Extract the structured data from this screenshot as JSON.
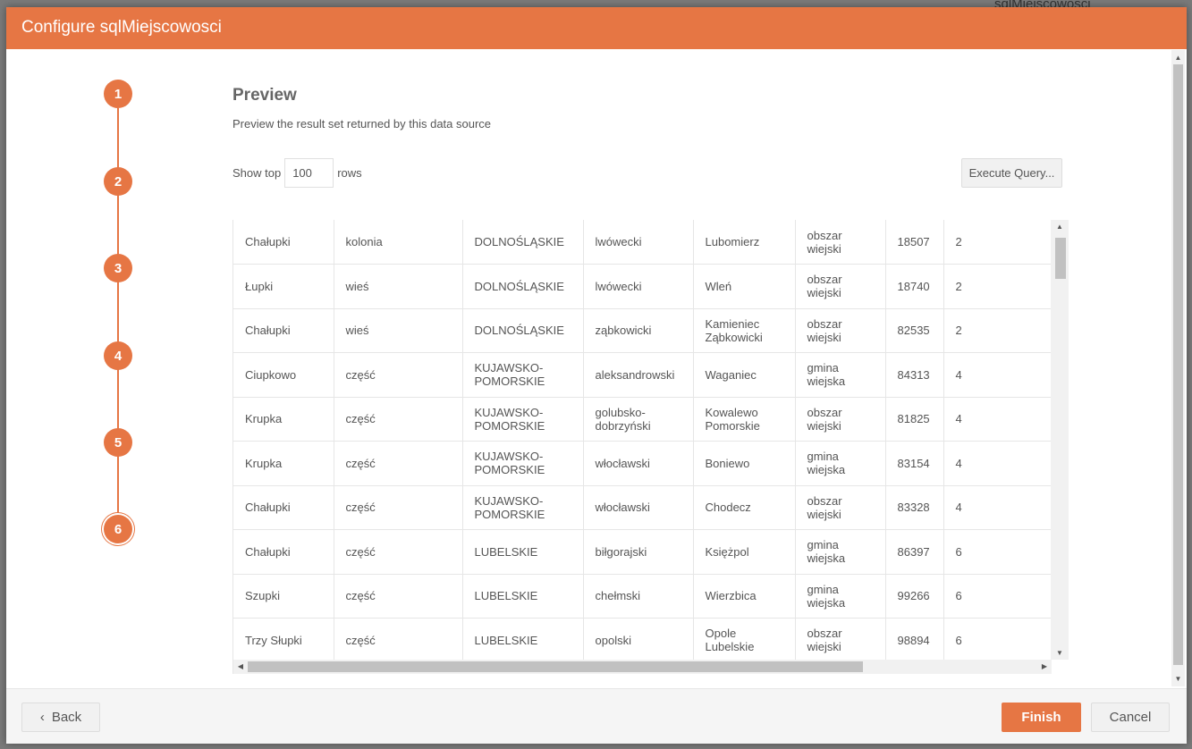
{
  "background_title": "sqlMiejscowosci (SqlDataSource)",
  "dialog": {
    "title": "Configure sqlMiejscowosci",
    "accent": "#e67644"
  },
  "steps": [
    "1",
    "2",
    "3",
    "4",
    "5",
    "6"
  ],
  "active_step": 6,
  "preview": {
    "title": "Preview",
    "description": "Preview the result set returned by this data source",
    "show_top_label": "Show top",
    "rows_value": "100",
    "rows_label": "rows",
    "execute_label": "Execute Query..."
  },
  "rows": [
    [
      "Chałupki",
      "kolonia",
      "DOLNOŚLĄSKIE",
      "lwówecki",
      "Lubomierz",
      "obszar wiejski",
      "18507",
      "2"
    ],
    [
      "Łupki",
      "wieś",
      "DOLNOŚLĄSKIE",
      "lwówecki",
      "Wleń",
      "obszar wiejski",
      "18740",
      "2"
    ],
    [
      "Chałupki",
      "wieś",
      "DOLNOŚLĄSKIE",
      "ząbkowicki",
      "Kamieniec Ząbkowicki",
      "obszar wiejski",
      "82535",
      "2"
    ],
    [
      "Ciupkowo",
      "część",
      "KUJAWSKO-POMORSKIE",
      "aleksandrowski",
      "Waganiec",
      "gmina wiejska",
      "84313",
      "4"
    ],
    [
      "Krupka",
      "część",
      "KUJAWSKO-POMORSKIE",
      "golubsko-dobrzyński",
      "Kowalewo Pomorskie",
      "obszar wiejski",
      "81825",
      "4"
    ],
    [
      "Krupka",
      "część",
      "KUJAWSKO-POMORSKIE",
      "włocławski",
      "Boniewo",
      "gmina wiejska",
      "83154",
      "4"
    ],
    [
      "Chałupki",
      "część",
      "KUJAWSKO-POMORSKIE",
      "włocławski",
      "Chodecz",
      "obszar wiejski",
      "83328",
      "4"
    ],
    [
      "Chałupki",
      "część",
      "LUBELSKIE",
      "biłgorajski",
      "Księżpol",
      "gmina wiejska",
      "86397",
      "6"
    ],
    [
      "Szupki",
      "część",
      "LUBELSKIE",
      "chełmski",
      "Wierzbica",
      "gmina wiejska",
      "99266",
      "6"
    ],
    [
      "Trzy Słupki",
      "część",
      "LUBELSKIE",
      "opolski",
      "Opole Lubelskie",
      "obszar wiejski",
      "98894",
      "6"
    ]
  ],
  "footer": {
    "back_label": "Back",
    "finish_label": "Finish",
    "cancel_label": "Cancel"
  }
}
